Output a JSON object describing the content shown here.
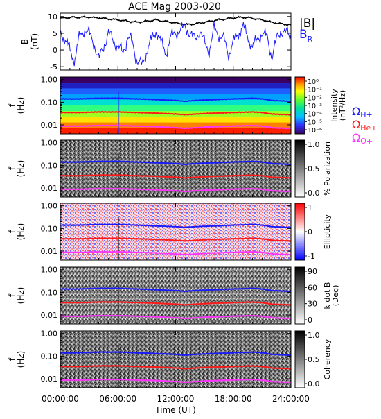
{
  "chart_data": [
    {
      "type": "line",
      "title": "ACE Mag 2003-020",
      "ylabel": "B",
      "yunit": "(nT)",
      "ylim": [
        -6,
        11
      ],
      "yticks": [
        "10",
        "5",
        "0",
        "-5"
      ],
      "ytick_values": [
        10,
        5,
        0,
        -5
      ],
      "series": [
        {
          "name": "|B|",
          "color": "#000000",
          "x_hours": [
            0,
            1,
            2,
            3,
            4,
            5,
            6,
            7,
            8,
            9,
            10,
            11,
            12,
            13,
            14,
            15,
            16,
            17,
            18,
            19,
            20,
            21,
            22,
            23,
            24
          ],
          "values": [
            9.5,
            9.7,
            9.8,
            9.8,
            9.6,
            9.3,
            9.0,
            8.6,
            8.3,
            8.6,
            9.0,
            8.5,
            8.1,
            7.6,
            7.8,
            8.3,
            8.8,
            9.2,
            9.6,
            9.8,
            9.5,
            9.0,
            8.3,
            7.8,
            7.5
          ]
        },
        {
          "name": "B_R",
          "label_main": "B",
          "label_sub": "R",
          "color": "#1a1aff",
          "x_hours": [
            0,
            0.5,
            1,
            1.5,
            2,
            2.5,
            3,
            3.5,
            4,
            4.5,
            5,
            5.5,
            6,
            6.5,
            7,
            7.5,
            8,
            8.5,
            9,
            9.5,
            10,
            10.5,
            11,
            11.5,
            12,
            12.5,
            13,
            13.5,
            14,
            14.5,
            15,
            15.5,
            16,
            16.5,
            17,
            17.5,
            18,
            18.5,
            19,
            19.5,
            20,
            20.5,
            21,
            21.5,
            22,
            22.5,
            23,
            23.5,
            24
          ],
          "values": [
            6,
            3,
            0,
            -3,
            4,
            6,
            5,
            2,
            -3,
            1,
            5,
            3,
            1,
            -1,
            4,
            2,
            -3,
            -5,
            0,
            3,
            6,
            2,
            -1,
            4,
            5,
            6,
            7,
            5,
            3,
            6,
            2,
            0,
            6,
            5,
            3,
            -1,
            2,
            5,
            7,
            4,
            1,
            3,
            5,
            4,
            -2,
            3,
            6,
            5,
            4
          ]
        }
      ]
    },
    {
      "type": "heatmap",
      "ylabel": "f",
      "yunit": "(Hz)",
      "colorbar_label": "Intensity",
      "colorbar_unit": "(nT²/Hz)",
      "colorbar_ticks": [
        "10⁰",
        "10⁻¹",
        "10⁻²",
        "10⁻³",
        "10⁻⁴",
        "10⁻⁵",
        "10⁻⁶"
      ],
      "colorscale": "rainbow"
    },
    {
      "type": "heatmap",
      "ylabel": "f",
      "yunit": "(Hz)",
      "colorbar_label": "% Polarization",
      "colorbar_ticks": [
        "1.0",
        "0.5",
        "0.0"
      ],
      "colorscale": "gray"
    },
    {
      "type": "heatmap",
      "ylabel": "f",
      "yunit": "(Hz)",
      "colorbar_label": "Ellipticity",
      "colorbar_ticks": [
        "1",
        "0",
        "-1"
      ],
      "colorscale": "bluewhitered"
    },
    {
      "type": "heatmap",
      "ylabel": "f",
      "yunit": "(Hz)",
      "colorbar_label": "k dot B",
      "colorbar_unit": "(Deg)",
      "colorbar_ticks": [
        "90",
        "60",
        "30",
        "0"
      ],
      "colorscale": "gray"
    },
    {
      "type": "heatmap",
      "ylabel": "f",
      "yunit": "(Hz)",
      "colorbar_label": "Coherency",
      "colorbar_ticks": [
        "1.0",
        "0.5",
        "0.0"
      ],
      "colorscale": "gray"
    }
  ],
  "spectra_common": {
    "yticks": [
      "1.00",
      "0.10",
      "0.01"
    ],
    "ytick_values": [
      1.0,
      0.1,
      0.01
    ],
    "ylim": [
      0.004,
      1.3
    ],
    "yscale": "log",
    "gyro_lines": [
      {
        "name": "ΩH+",
        "label_main": "Ω",
        "label_sub": "H+",
        "color": "#1a1aff",
        "x_hours": [
          0,
          2,
          4,
          6,
          8,
          10,
          12,
          13,
          14,
          16,
          18,
          20,
          21,
          22,
          24
        ],
        "values": [
          0.14,
          0.14,
          0.15,
          0.15,
          0.14,
          0.13,
          0.12,
          0.11,
          0.12,
          0.13,
          0.14,
          0.15,
          0.14,
          0.12,
          0.11
        ]
      },
      {
        "name": "ΩHe+",
        "label_main": "Ω",
        "label_sub": "He+",
        "color": "#ff1a1a",
        "x_hours": [
          0,
          2,
          4,
          6,
          8,
          10,
          12,
          13,
          14,
          16,
          18,
          20,
          21,
          22,
          24
        ],
        "values": [
          0.035,
          0.035,
          0.037,
          0.037,
          0.035,
          0.033,
          0.03,
          0.028,
          0.03,
          0.033,
          0.035,
          0.037,
          0.035,
          0.03,
          0.028
        ]
      },
      {
        "name": "ΩO+",
        "label_main": "Ω",
        "label_sub": "O+",
        "color": "#ff33ff",
        "x_hours": [
          0,
          2,
          4,
          6,
          8,
          10,
          12,
          13,
          14,
          16,
          18,
          20,
          21,
          22,
          24
        ],
        "values": [
          0.0088,
          0.0088,
          0.0093,
          0.0093,
          0.0088,
          0.0083,
          0.0075,
          0.007,
          0.0075,
          0.0083,
          0.0088,
          0.0093,
          0.0088,
          0.0075,
          0.007
        ]
      }
    ]
  },
  "x_axis": {
    "label": "Time (UT)",
    "ticks": [
      "00:00:00",
      "06:00:00",
      "12:00:00",
      "18:00:00",
      "24:00:00"
    ],
    "tick_hours": [
      0,
      6,
      12,
      18,
      24
    ],
    "range": [
      0,
      24
    ]
  }
}
